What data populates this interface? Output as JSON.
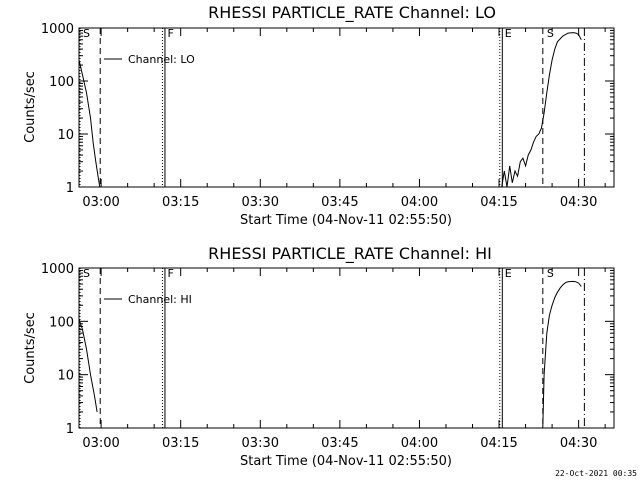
{
  "colors": {
    "background": "#ffffff",
    "foreground": "#000000"
  },
  "chart_data": [
    {
      "type": "line",
      "title": "RHESSI PARTICLE_RATE Channel: LO",
      "xlabel": "Start Time (04-Nov-11 02:55:50)",
      "ylabel": "Counts/sec",
      "y_scale": "log",
      "ylim": [
        1,
        1000
      ],
      "xlim": [
        "02:55:50",
        "04:36:40"
      ],
      "x_ticks": [
        "03:00",
        "03:15",
        "03:30",
        "03:45",
        "04:00",
        "04:15",
        "04:30"
      ],
      "y_ticks": [
        "1",
        "10",
        "100",
        "1000"
      ],
      "legend": {
        "label": "Channel: LO",
        "placement": "top-left"
      },
      "grid": false,
      "vlines": [
        {
          "label": "S",
          "time": "02:55:50",
          "style": "dotted"
        },
        {
          "label": "",
          "time": "02:59:50",
          "style": "dashed"
        },
        {
          "label": "F",
          "time": "03:11:45",
          "style": "dotted+solid"
        },
        {
          "label": "E",
          "time": "04:15:20",
          "style": "dotted+solid"
        },
        {
          "label": "S",
          "time": "04:23:15",
          "style": "dashed"
        },
        {
          "label": "",
          "time": "04:31:05",
          "style": "dash-dot"
        }
      ],
      "series": [
        {
          "x": [
            "02:55:50",
            "02:56:30",
            "02:57:15",
            "02:58:00",
            "02:58:30",
            "02:59:00",
            "02:59:30",
            "02:59:45"
          ],
          "values": [
            250,
            130,
            60,
            20,
            7,
            3,
            1.4,
            1
          ]
        },
        {
          "x": [
            "04:15:30",
            "04:16:00",
            "04:16:30",
            "04:17:00",
            "04:17:30",
            "04:18:00",
            "04:18:30",
            "04:19:00",
            "04:19:30",
            "04:20:00",
            "04:20:30",
            "04:21:00",
            "04:21:30",
            "04:22:00",
            "04:22:30",
            "04:23:00",
            "04:23:30",
            "04:24:00",
            "04:24:30",
            "04:25:00",
            "04:25:30",
            "04:26:00",
            "04:27:00",
            "04:28:00",
            "04:29:00",
            "04:29:30",
            "04:30:00",
            "04:30:30"
          ],
          "values": [
            1,
            2,
            1,
            2.5,
            1.2,
            2,
            1.6,
            3,
            3.5,
            2.5,
            4,
            5,
            7,
            9,
            10,
            13,
            25,
            60,
            130,
            250,
            400,
            550,
            700,
            800,
            820,
            800,
            750,
            600
          ]
        }
      ]
    },
    {
      "type": "line",
      "title": "RHESSI PARTICLE_RATE Channel: HI",
      "xlabel": "Start Time (04-Nov-11 02:55:50)",
      "ylabel": "Counts/sec",
      "y_scale": "log",
      "ylim": [
        1,
        1000
      ],
      "xlim": [
        "02:55:50",
        "04:36:40"
      ],
      "x_ticks": [
        "03:00",
        "03:15",
        "03:30",
        "03:45",
        "04:00",
        "04:15",
        "04:30"
      ],
      "y_ticks": [
        "1",
        "10",
        "100",
        "1000"
      ],
      "legend": {
        "label": "Channel: HI",
        "placement": "top-left"
      },
      "grid": false,
      "vlines": [
        {
          "label": "S",
          "time": "02:55:50",
          "style": "dotted"
        },
        {
          "label": "",
          "time": "02:59:50",
          "style": "dashed"
        },
        {
          "label": "F",
          "time": "03:11:45",
          "style": "dotted+solid"
        },
        {
          "label": "E",
          "time": "04:15:20",
          "style": "dotted+solid"
        },
        {
          "label": "S",
          "time": "04:23:15",
          "style": "dashed"
        },
        {
          "label": "",
          "time": "04:31:05",
          "style": "dash-dot"
        }
      ],
      "series": [
        {
          "x": [
            "02:55:50",
            "02:56:30",
            "02:57:15",
            "02:58:00",
            "02:58:45",
            "02:59:15"
          ],
          "values": [
            110,
            70,
            30,
            10,
            4,
            2
          ]
        },
        {
          "x": [
            "04:23:15",
            "04:23:30",
            "04:24:00",
            "04:24:30",
            "04:25:00",
            "04:25:30",
            "04:26:00",
            "04:26:30",
            "04:27:00",
            "04:27:30",
            "04:28:00",
            "04:29:00",
            "04:29:30",
            "04:30:00",
            "04:30:30"
          ],
          "values": [
            1,
            10,
            60,
            130,
            200,
            280,
            350,
            420,
            480,
            530,
            550,
            560,
            550,
            520,
            450
          ]
        }
      ]
    }
  ],
  "footer": {
    "timestamp": "22-Oct-2021 00:35"
  }
}
